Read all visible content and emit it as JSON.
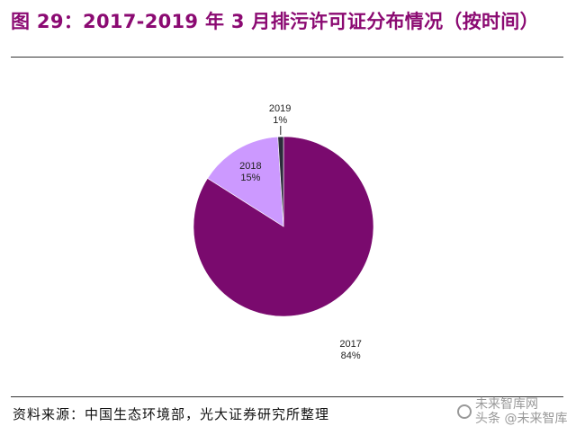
{
  "title": "图 29：2017-2019 年 3 月排污许可证分布情况（按时间）",
  "source": "资料来源：中国生态环境部，光大证券研究所整理",
  "watermark": {
    "line1": "未来智库网",
    "line2": "头条 @未来智库"
  },
  "chart_data": {
    "type": "pie",
    "title": "",
    "slices": [
      {
        "label": "2017",
        "value": 84,
        "value_label": "84%",
        "color": "#7a0a6e"
      },
      {
        "label": "2018",
        "value": 15,
        "value_label": "15%",
        "color": "#cc99ff"
      },
      {
        "label": "2019",
        "value": 1,
        "value_label": "1%",
        "color": "#2b2b3a"
      }
    ],
    "start_angle_deg": 0,
    "direction": "clockwise",
    "legend": "none"
  }
}
